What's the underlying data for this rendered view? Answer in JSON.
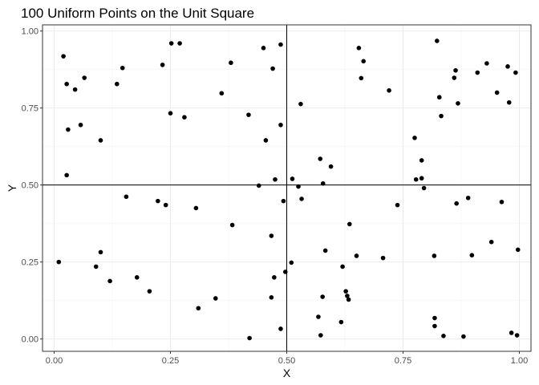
{
  "chart_data": {
    "type": "scatter",
    "title": "100 Uniform Points on the Unit Square",
    "xlabel": "X",
    "ylabel": "Y",
    "xlim": [
      -0.025,
      1.025
    ],
    "ylim": [
      -0.04,
      1.02
    ],
    "x_ticks": [
      0,
      0.25,
      0.5,
      0.75,
      1
    ],
    "x_tick_labels": [
      "0.00",
      "0.25",
      "0.50",
      "0.75",
      "1.00"
    ],
    "y_ticks": [
      0,
      0.25,
      0.5,
      0.75,
      1
    ],
    "y_tick_labels": [
      "0.00",
      "0.25",
      "0.50",
      "0.75",
      "1.00"
    ],
    "grid": true,
    "reference_lines": {
      "vertical_x": 0.5,
      "horizontal_y": 0.5
    },
    "point_color": "#000000",
    "points": [
      {
        "x": 0.02,
        "y": 0.918
      },
      {
        "x": 0.027,
        "y": 0.828
      },
      {
        "x": 0.045,
        "y": 0.81
      },
      {
        "x": 0.065,
        "y": 0.848
      },
      {
        "x": 0.135,
        "y": 0.828
      },
      {
        "x": 0.147,
        "y": 0.88
      },
      {
        "x": 0.233,
        "y": 0.89
      },
      {
        "x": 0.252,
        "y": 0.96
      },
      {
        "x": 0.27,
        "y": 0.96
      },
      {
        "x": 0.38,
        "y": 0.897
      },
      {
        "x": 0.45,
        "y": 0.945
      },
      {
        "x": 0.47,
        "y": 0.878
      },
      {
        "x": 0.487,
        "y": 0.956
      },
      {
        "x": 0.655,
        "y": 0.945
      },
      {
        "x": 0.665,
        "y": 0.902
      },
      {
        "x": 0.66,
        "y": 0.847
      },
      {
        "x": 0.72,
        "y": 0.807
      },
      {
        "x": 0.823,
        "y": 0.968
      },
      {
        "x": 0.828,
        "y": 0.785
      },
      {
        "x": 0.863,
        "y": 0.872
      },
      {
        "x": 0.86,
        "y": 0.848
      },
      {
        "x": 0.91,
        "y": 0.865
      },
      {
        "x": 0.93,
        "y": 0.895
      },
      {
        "x": 0.975,
        "y": 0.885
      },
      {
        "x": 0.992,
        "y": 0.865
      },
      {
        "x": 0.952,
        "y": 0.8
      },
      {
        "x": 0.978,
        "y": 0.768
      },
      {
        "x": 0.868,
        "y": 0.765
      },
      {
        "x": 0.832,
        "y": 0.724
      },
      {
        "x": 0.03,
        "y": 0.68
      },
      {
        "x": 0.057,
        "y": 0.695
      },
      {
        "x": 0.1,
        "y": 0.645
      },
      {
        "x": 0.25,
        "y": 0.733
      },
      {
        "x": 0.28,
        "y": 0.72
      },
      {
        "x": 0.36,
        "y": 0.798
      },
      {
        "x": 0.418,
        "y": 0.728
      },
      {
        "x": 0.455,
        "y": 0.645
      },
      {
        "x": 0.487,
        "y": 0.695
      },
      {
        "x": 0.53,
        "y": 0.763
      },
      {
        "x": 0.572,
        "y": 0.585
      },
      {
        "x": 0.595,
        "y": 0.56
      },
      {
        "x": 0.578,
        "y": 0.505
      },
      {
        "x": 0.775,
        "y": 0.653
      },
      {
        "x": 0.79,
        "y": 0.58
      },
      {
        "x": 0.778,
        "y": 0.518
      },
      {
        "x": 0.79,
        "y": 0.522
      },
      {
        "x": 0.795,
        "y": 0.49
      },
      {
        "x": 0.027,
        "y": 0.532
      },
      {
        "x": 0.155,
        "y": 0.462
      },
      {
        "x": 0.223,
        "y": 0.448
      },
      {
        "x": 0.24,
        "y": 0.435
      },
      {
        "x": 0.305,
        "y": 0.425
      },
      {
        "x": 0.44,
        "y": 0.498
      },
      {
        "x": 0.475,
        "y": 0.518
      },
      {
        "x": 0.493,
        "y": 0.448
      },
      {
        "x": 0.512,
        "y": 0.52
      },
      {
        "x": 0.525,
        "y": 0.495
      },
      {
        "x": 0.532,
        "y": 0.455
      },
      {
        "x": 0.738,
        "y": 0.435
      },
      {
        "x": 0.865,
        "y": 0.44
      },
      {
        "x": 0.89,
        "y": 0.458
      },
      {
        "x": 0.962,
        "y": 0.445
      },
      {
        "x": 0.383,
        "y": 0.37
      },
      {
        "x": 0.635,
        "y": 0.373
      },
      {
        "x": 0.467,
        "y": 0.335
      },
      {
        "x": 0.01,
        "y": 0.25
      },
      {
        "x": 0.09,
        "y": 0.235
      },
      {
        "x": 0.1,
        "y": 0.282
      },
      {
        "x": 0.12,
        "y": 0.188
      },
      {
        "x": 0.178,
        "y": 0.2
      },
      {
        "x": 0.205,
        "y": 0.155
      },
      {
        "x": 0.31,
        "y": 0.1
      },
      {
        "x": 0.347,
        "y": 0.132
      },
      {
        "x": 0.467,
        "y": 0.135
      },
      {
        "x": 0.473,
        "y": 0.2
      },
      {
        "x": 0.497,
        "y": 0.218
      },
      {
        "x": 0.51,
        "y": 0.248
      },
      {
        "x": 0.583,
        "y": 0.287
      },
      {
        "x": 0.62,
        "y": 0.235
      },
      {
        "x": 0.65,
        "y": 0.27
      },
      {
        "x": 0.707,
        "y": 0.263
      },
      {
        "x": 0.817,
        "y": 0.27
      },
      {
        "x": 0.898,
        "y": 0.272
      },
      {
        "x": 0.94,
        "y": 0.315
      },
      {
        "x": 0.997,
        "y": 0.29
      },
      {
        "x": 0.577,
        "y": 0.137
      },
      {
        "x": 0.627,
        "y": 0.155
      },
      {
        "x": 0.63,
        "y": 0.14
      },
      {
        "x": 0.633,
        "y": 0.128
      },
      {
        "x": 0.568,
        "y": 0.072
      },
      {
        "x": 0.617,
        "y": 0.055
      },
      {
        "x": 0.573,
        "y": 0.012
      },
      {
        "x": 0.818,
        "y": 0.068
      },
      {
        "x": 0.818,
        "y": 0.042
      },
      {
        "x": 0.837,
        "y": 0.01
      },
      {
        "x": 0.88,
        "y": 0.008
      },
      {
        "x": 0.983,
        "y": 0.02
      },
      {
        "x": 0.995,
        "y": 0.012
      },
      {
        "x": 0.42,
        "y": 0.003
      },
      {
        "x": 0.487,
        "y": 0.033
      }
    ]
  }
}
